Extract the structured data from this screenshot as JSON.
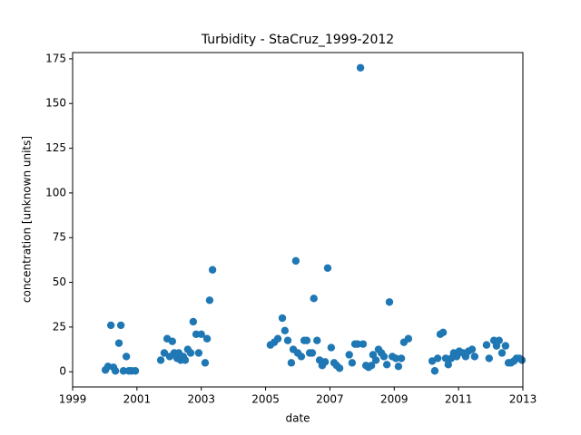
{
  "chart_data": {
    "type": "scatter",
    "title": "Turbidity - StaCruz_1999-2012",
    "xlabel": "date",
    "ylabel": "concentration [unknown units]",
    "color": "#1f77b4",
    "xlim": [
      1999,
      2013
    ],
    "xticks": [
      1999,
      2001,
      2003,
      2005,
      2007,
      2009,
      2011,
      2013
    ],
    "ylim": [
      -8.5,
      178.5
    ],
    "yticks": [
      0,
      25,
      50,
      75,
      100,
      125,
      150,
      175
    ],
    "x": [
      2000.02,
      2000.1,
      2000.19,
      2000.27,
      2000.33,
      2000.44,
      2000.5,
      2000.58,
      2000.67,
      2000.75,
      2000.83,
      2000.95,
      2001.74,
      2001.85,
      2001.94,
      2002.02,
      2002.1,
      2002.16,
      2002.25,
      2002.3,
      2002.36,
      2002.44,
      2002.5,
      2002.58,
      2002.67,
      2002.75,
      2002.84,
      2002.92,
      2003.0,
      2003.12,
      2003.18,
      2003.26,
      2003.35,
      2005.15,
      2005.27,
      2005.38,
      2005.52,
      2005.6,
      2005.69,
      2005.8,
      2005.86,
      2005.94,
      2006.0,
      2006.11,
      2006.2,
      2006.28,
      2006.37,
      2006.45,
      2006.5,
      2006.6,
      2006.68,
      2006.76,
      2006.85,
      2006.93,
      2007.04,
      2007.13,
      2007.21,
      2007.3,
      2007.6,
      2007.69,
      2007.78,
      2007.86,
      2007.95,
      2008.03,
      2008.12,
      2008.2,
      2008.29,
      2008.34,
      2008.43,
      2008.51,
      2008.6,
      2008.68,
      2008.77,
      2008.85,
      2008.94,
      2009.05,
      2009.13,
      2009.22,
      2009.3,
      2009.44,
      2010.18,
      2010.26,
      2010.35,
      2010.43,
      2010.52,
      2010.6,
      2010.68,
      2010.77,
      2010.85,
      2010.94,
      2011.02,
      2011.14,
      2011.22,
      2011.31,
      2011.42,
      2011.5,
      2011.87,
      2011.95,
      2012.1,
      2012.18,
      2012.26,
      2012.35,
      2012.46,
      2012.55,
      2012.63,
      2012.72,
      2012.8,
      2012.89,
      2012.97
    ],
    "values": [
      1,
      3,
      26,
      2.5,
      0.5,
      16,
      26,
      0.5,
      8.5,
      0.5,
      0.5,
      0.5,
      6.5,
      10.5,
      18.5,
      8.5,
      17,
      10.5,
      7.5,
      10.5,
      6.5,
      8.5,
      6.5,
      12.5,
      10.5,
      28,
      21,
      10.5,
      21,
      5,
      18.5,
      40,
      57,
      15,
      16.5,
      18.5,
      30,
      23,
      17.5,
      5,
      12.5,
      62,
      10.5,
      8.5,
      17.5,
      17.5,
      10.5,
      10.5,
      41,
      17.5,
      6.5,
      3.5,
      5.5,
      58,
      13.5,
      5,
      3.5,
      2,
      9.5,
      5,
      15.5,
      15.5,
      170,
      15.5,
      3.5,
      2.5,
      3.5,
      9.5,
      6.5,
      12.5,
      10.5,
      8.5,
      4,
      39,
      8.5,
      7.5,
      3,
      7.5,
      16.5,
      18.5,
      6,
      0.5,
      7.5,
      21,
      22,
      7.5,
      4,
      7.5,
      10.5,
      8.5,
      11.5,
      10.5,
      8.5,
      11.5,
      12.5,
      8.5,
      15,
      7.5,
      17.5,
      14.5,
      17.5,
      10.5,
      14.5,
      5,
      5,
      6,
      7.5,
      7.5,
      6.5
    ]
  }
}
